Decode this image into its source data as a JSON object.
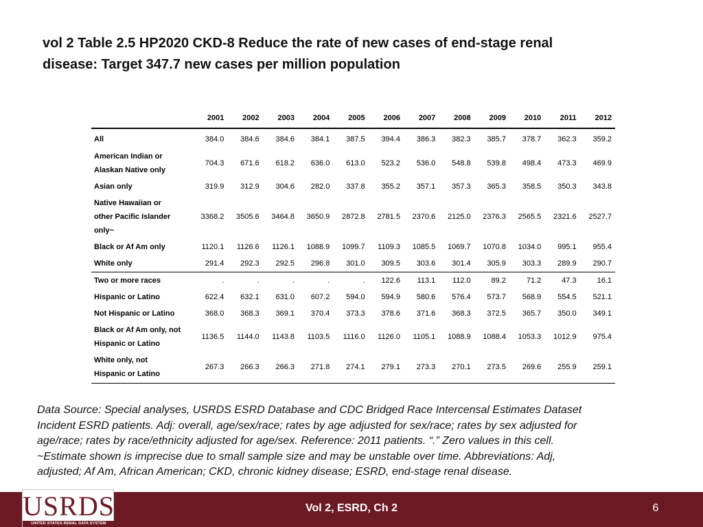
{
  "title_line1": "vol 2 Table 2.5  HP2020 CKD-8 Reduce the rate of new cases of end-stage renal",
  "title_line2": "disease: Target 347.7 new cases per million population",
  "table": {
    "years": [
      "2001",
      "2002",
      "2003",
      "2004",
      "2005",
      "2006",
      "2007",
      "2008",
      "2009",
      "2010",
      "2011",
      "2012"
    ],
    "rows": [
      {
        "label_lines": [
          "All"
        ],
        "values": [
          "384.0",
          "384.6",
          "384.6",
          "384.1",
          "387.5",
          "394.4",
          "386.3",
          "382.3",
          "385.7",
          "378.7",
          "362.3",
          "359.2"
        ]
      },
      {
        "label_lines": [
          "American Indian or",
          "Alaskan Native only"
        ],
        "values": [
          "704.3",
          "671.6",
          "618.2",
          "636.0",
          "613.0",
          "523.2",
          "536.0",
          "548.8",
          "539.8",
          "498.4",
          "473.3",
          "469.9"
        ]
      },
      {
        "label_lines": [
          "Asian only"
        ],
        "values": [
          "319.9",
          "312.9",
          "304.6",
          "282.0",
          "337.8",
          "355.2",
          "357.1",
          "357.3",
          "365.3",
          "358.5",
          "350.3",
          "343.8"
        ]
      },
      {
        "label_lines": [
          "Native Hawaiian or",
          "other Pacific Islander",
          "only~"
        ],
        "values": [
          "3368.2",
          "3505.6",
          "3464.8",
          "3650.9",
          "2872.8",
          "2781.5",
          "2370.6",
          "2125.0",
          "2376.3",
          "2565.5",
          "2321.6",
          "2527.7"
        ]
      },
      {
        "label_lines": [
          "Black or Af Am only"
        ],
        "values": [
          "1120.1",
          "1126.6",
          "1126.1",
          "1088.9",
          "1099.7",
          "1109.3",
          "1085.5",
          "1069.7",
          "1070.8",
          "1034.0",
          "995.1",
          "955.4"
        ]
      },
      {
        "label_lines": [
          "White only"
        ],
        "values": [
          "291.4",
          "292.3",
          "292.5",
          "296.8",
          "301.0",
          "309.5",
          "303.6",
          "301.4",
          "305.9",
          "303.3",
          "289.9",
          "290.7"
        ]
      },
      {
        "label_lines": [
          "Two or more races"
        ],
        "values": [
          ".",
          ".",
          ".",
          ".",
          ".",
          "122.6",
          "113.1",
          "112.0",
          "89.2",
          "71.2",
          "47.3",
          "16.1"
        ]
      },
      {
        "label_lines": [
          "Hispanic or Latino"
        ],
        "values": [
          "622.4",
          "632.1",
          "631.0",
          "607.2",
          "594.0",
          "594.9",
          "580.6",
          "576.4",
          "573.7",
          "568.9",
          "554.5",
          "521.1"
        ]
      },
      {
        "label_lines": [
          "Not Hispanic or Latino"
        ],
        "values": [
          "368.0",
          "368.3",
          "369.1",
          "370.4",
          "373.3",
          "378.6",
          "371.6",
          "368.3",
          "372.5",
          "365.7",
          "350.0",
          "349.1"
        ]
      },
      {
        "label_lines": [
          "Black or Af Am only, not",
          "Hispanic or Latino"
        ],
        "values": [
          "1136.5",
          "1144.0",
          "1143.8",
          "1103.5",
          "1116.0",
          "1126.0",
          "1105.1",
          "1088.9",
          "1088.4",
          "1053.3",
          "1012.9",
          "975.4"
        ]
      },
      {
        "label_lines": [
          "White only, not",
          "Hispanic or Latino"
        ],
        "values": [
          "267.3",
          "266.3",
          "266.3",
          "271.8",
          "274.1",
          "279.1",
          "273.3",
          "270.1",
          "273.5",
          "269.6",
          "255.9",
          "259.1"
        ]
      }
    ]
  },
  "footnote_lines": [
    "Data Source: Special analyses, USRDS ESRD Database and CDC Bridged Race Intercensal Estimates Dataset",
    "Incident ESRD patients. Adj: overall, age/sex/race; rates by age adjusted for sex/race; rates by sex adjusted for",
    "age/race; rates by race/ethnicity adjusted for age/sex. Reference: 2011 patients. “.” Zero values in this cell.",
    "~Estimate shown is imprecise due to small sample size and may be unstable over time. Abbreviations: Adj,",
    "adjusted; Af Am, African American; CKD, chronic kidney disease; ESRD, end-stage renal disease."
  ],
  "footer": {
    "logo_text": "USRDS",
    "logo_subtext": "UNITED STATES RENAL DATA SYSTEM",
    "center_text": "Vol 2, ESRD, Ch 2",
    "page_number": "6",
    "bar_color": "#6b1a24"
  }
}
